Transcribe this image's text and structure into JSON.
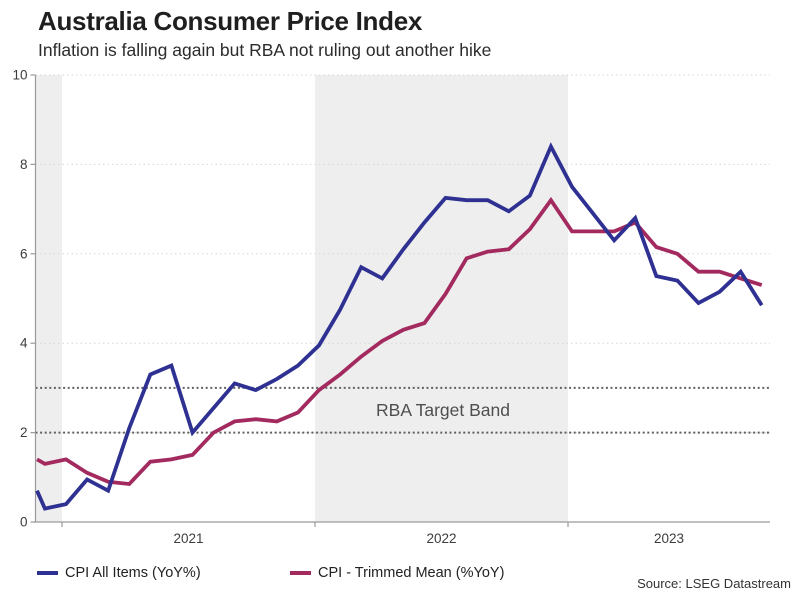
{
  "header": {
    "title": "Australia Consumer Price Index",
    "subtitle": "Inflation is falling again but RBA not ruling out another hike"
  },
  "annotation": {
    "rba_band_label": "RBA Target Band"
  },
  "legend": [
    {
      "label": "CPI All Items (YoY%)",
      "color": "#2e3192"
    },
    {
      "label": "CPI - Trimmed Mean (%YoY)",
      "color": "#a32a5e"
    }
  ],
  "footer": {
    "source": "Source: LSEG Datastream"
  },
  "colors": {
    "series_all_items": "#2e3192",
    "series_trimmed_mean": "#a32a5e",
    "year_shading": "#eeeeee",
    "gridline": "#d5d5d5",
    "target_band_line": "#616161",
    "axis": "#9a9a9a",
    "tick_text": "#3c3c3c"
  },
  "chart_data": {
    "type": "line",
    "title": "Australia Consumer Price Index",
    "subtitle": "Inflation is falling again but RBA not ruling out another hike",
    "xlabel": "",
    "ylabel": "",
    "ylim": [
      0,
      10
    ],
    "y_ticks": [
      0,
      2,
      4,
      6,
      8,
      10
    ],
    "x_tick_labels": [
      "2021",
      "2022",
      "2023"
    ],
    "x_year_start_indices": [
      2,
      14,
      26
    ],
    "shaded_ranges": [
      [
        0,
        2
      ],
      [
        14,
        26
      ]
    ],
    "grid": "dotted horizontal gridlines",
    "legend_position": "bottom",
    "target_band": {
      "low": 2,
      "high": 3,
      "label": "RBA Target Band"
    },
    "x": [
      "Nov 2020",
      "Dec 2020",
      "Jan 2021",
      "Feb 2021",
      "Mar 2021",
      "Apr 2021",
      "May 2021",
      "Jun 2021",
      "Jul 2021",
      "Aug 2021",
      "Sep 2021",
      "Oct 2021",
      "Nov 2021",
      "Dec 2021",
      "Jan 2022",
      "Feb 2022",
      "Mar 2022",
      "Apr 2022",
      "May 2022",
      "Jun 2022",
      "Jul 2022",
      "Aug 2022",
      "Sep 2022",
      "Oct 2022",
      "Nov 2022",
      "Dec 2022",
      "Jan 2023",
      "Feb 2023",
      "Mar 2023",
      "Apr 2023",
      "May 2023",
      "Jun 2023",
      "Jul 2023",
      "Aug 2023",
      "Sep 2023",
      "Oct 2023"
    ],
    "series": [
      {
        "name": "CPI All Items (YoY%)",
        "color": "#2e3192",
        "values": [
          0.7,
          0.3,
          0.4,
          0.95,
          0.7,
          2.1,
          3.3,
          3.5,
          2.0,
          2.55,
          3.1,
          2.95,
          3.2,
          3.5,
          3.95,
          4.75,
          5.7,
          5.45,
          6.1,
          6.7,
          7.25,
          7.2,
          7.2,
          6.95,
          7.3,
          8.4,
          7.5,
          6.9,
          6.3,
          6.8,
          5.5,
          5.4,
          4.9,
          5.15,
          5.6,
          4.85
        ]
      },
      {
        "name": "CPI - Trimmed Mean (%YoY)",
        "color": "#a32a5e",
        "values": [
          1.4,
          1.3,
          1.4,
          1.1,
          0.9,
          0.85,
          1.35,
          1.4,
          1.5,
          2.0,
          2.25,
          2.3,
          2.25,
          2.45,
          2.95,
          3.3,
          3.7,
          4.05,
          4.3,
          4.45,
          5.1,
          5.9,
          6.05,
          6.1,
          6.55,
          7.2,
          6.5,
          6.5,
          6.5,
          6.7,
          6.15,
          6.0,
          5.6,
          5.6,
          5.45,
          5.3
        ]
      }
    ]
  }
}
